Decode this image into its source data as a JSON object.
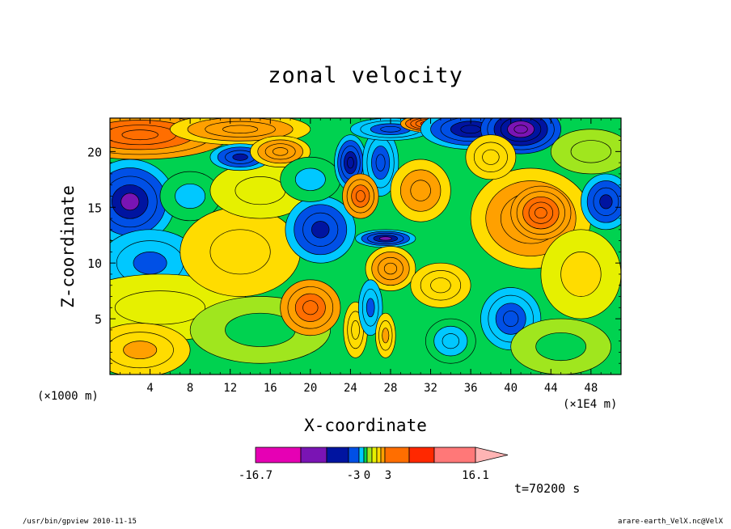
{
  "chart_data": {
    "type": "heatmap",
    "title": "zonal velocity",
    "xlabel": "X-coordinate",
    "ylabel": "Z-coordinate",
    "x_unit_label": "(×1000 m)",
    "x_scale_label": "(×1E4 m)",
    "xlim": [
      0,
      51
    ],
    "ylim": [
      0,
      23
    ],
    "x_ticks": [
      "4",
      "8",
      "12",
      "16",
      "20",
      "24",
      "28",
      "32",
      "36",
      "40",
      "44",
      "48"
    ],
    "y_ticks": [
      "5",
      "10",
      "15",
      "20"
    ],
    "colorbar": {
      "labels": [
        "-16.7",
        "-3",
        "0",
        "3",
        "16.1"
      ],
      "colors": [
        "#e600b4",
        "#7a14b4",
        "#0014a0",
        "#0050e6",
        "#00c8ff",
        "#00d250",
        "#a0e61e",
        "#e6f000",
        "#ffdc00",
        "#ffa000",
        "#ff6e00",
        "#ff2800",
        "#ff7878",
        "#ffb4b4"
      ]
    },
    "regions": [
      {
        "x": 3,
        "y": 21.5,
        "rx": 9,
        "ry": 2.2,
        "v": 8
      },
      {
        "x": 13,
        "y": 22,
        "rx": 7,
        "ry": 1.4,
        "v": 5
      },
      {
        "x": 2,
        "y": 15.5,
        "rx": 4.5,
        "ry": 3.8,
        "v": -8
      },
      {
        "x": 4,
        "y": 10,
        "rx": 5,
        "ry": 3.0,
        "v": -4
      },
      {
        "x": 8,
        "y": 16,
        "rx": 3,
        "ry": 2.2,
        "v": -2
      },
      {
        "x": 5,
        "y": 6,
        "rx": 9,
        "ry": 3,
        "v": 1.6
      },
      {
        "x": 3,
        "y": 2.2,
        "rx": 5,
        "ry": 2.4,
        "v": 3.6
      },
      {
        "x": 13,
        "y": 11,
        "rx": 6,
        "ry": 4,
        "v": 2.5
      },
      {
        "x": 15,
        "y": 16.5,
        "rx": 5,
        "ry": 2.5,
        "v": 1.5
      },
      {
        "x": 15,
        "y": 4,
        "rx": 7,
        "ry": 3,
        "v": -1
      },
      {
        "x": 13,
        "y": 19.5,
        "rx": 3,
        "ry": 1.2,
        "v": -6
      },
      {
        "x": 17,
        "y": 20,
        "rx": 3,
        "ry": 1.4,
        "v": 5
      },
      {
        "x": 21,
        "y": 13,
        "rx": 3.5,
        "ry": 3,
        "v": -6
      },
      {
        "x": 20,
        "y": 17.5,
        "rx": 3,
        "ry": 2,
        "v": -2
      },
      {
        "x": 24,
        "y": 19,
        "rx": 1.6,
        "ry": 2.5,
        "v": -7
      },
      {
        "x": 27,
        "y": 19,
        "rx": 1.8,
        "ry": 3,
        "v": -5
      },
      {
        "x": 25,
        "y": 16,
        "rx": 1.8,
        "ry": 2,
        "v": 6
      },
      {
        "x": 28,
        "y": 22,
        "rx": 4,
        "ry": 1,
        "v": -5
      },
      {
        "x": 32,
        "y": 22.5,
        "rx": 3,
        "ry": 0.8,
        "v": 9
      },
      {
        "x": 31,
        "y": 16.5,
        "rx": 3,
        "ry": 2.8,
        "v": 4
      },
      {
        "x": 27.5,
        "y": 12.2,
        "rx": 3,
        "ry": 0.8,
        "v": -8
      },
      {
        "x": 28,
        "y": 9.5,
        "rx": 2.5,
        "ry": 2,
        "v": 5
      },
      {
        "x": 20,
        "y": 6,
        "rx": 3,
        "ry": 2.5,
        "v": 6
      },
      {
        "x": 24.5,
        "y": 4,
        "rx": 1.2,
        "ry": 2.5,
        "v": 3
      },
      {
        "x": 26,
        "y": 6,
        "rx": 1.2,
        "ry": 2.5,
        "v": -4
      },
      {
        "x": 27.5,
        "y": 3.5,
        "rx": 1,
        "ry": 2,
        "v": 3.5
      },
      {
        "x": 33,
        "y": 8,
        "rx": 3,
        "ry": 2,
        "v": 3
      },
      {
        "x": 34,
        "y": 3,
        "rx": 2.5,
        "ry": 2,
        "v": -3
      },
      {
        "x": 36,
        "y": 22,
        "rx": 5,
        "ry": 1.8,
        "v": -7
      },
      {
        "x": 41,
        "y": 22,
        "rx": 4,
        "ry": 2.2,
        "v": -10
      },
      {
        "x": 42,
        "y": 14,
        "rx": 6,
        "ry": 4.5,
        "v": 5
      },
      {
        "x": 43,
        "y": 14.5,
        "rx": 3,
        "ry": 2.4,
        "v": 8
      },
      {
        "x": 47,
        "y": 9,
        "rx": 4,
        "ry": 4,
        "v": 1.8
      },
      {
        "x": 40,
        "y": 5,
        "rx": 3,
        "ry": 2.8,
        "v": -5
      },
      {
        "x": 45,
        "y": 2.5,
        "rx": 5,
        "ry": 2.5,
        "v": -1
      },
      {
        "x": 49.5,
        "y": 15.5,
        "rx": 2.5,
        "ry": 2.5,
        "v": -6
      },
      {
        "x": 38,
        "y": 19.5,
        "rx": 2.5,
        "ry": 2,
        "v": 3
      },
      {
        "x": 48,
        "y": 20,
        "rx": 4,
        "ry": 2,
        "v": 0.5
      }
    ]
  },
  "time_label": "t=70200 s",
  "footer": {
    "left": "/usr/bin/gpview   2010-11-15",
    "right": "arare-earth_VelX.nc@VelX"
  }
}
